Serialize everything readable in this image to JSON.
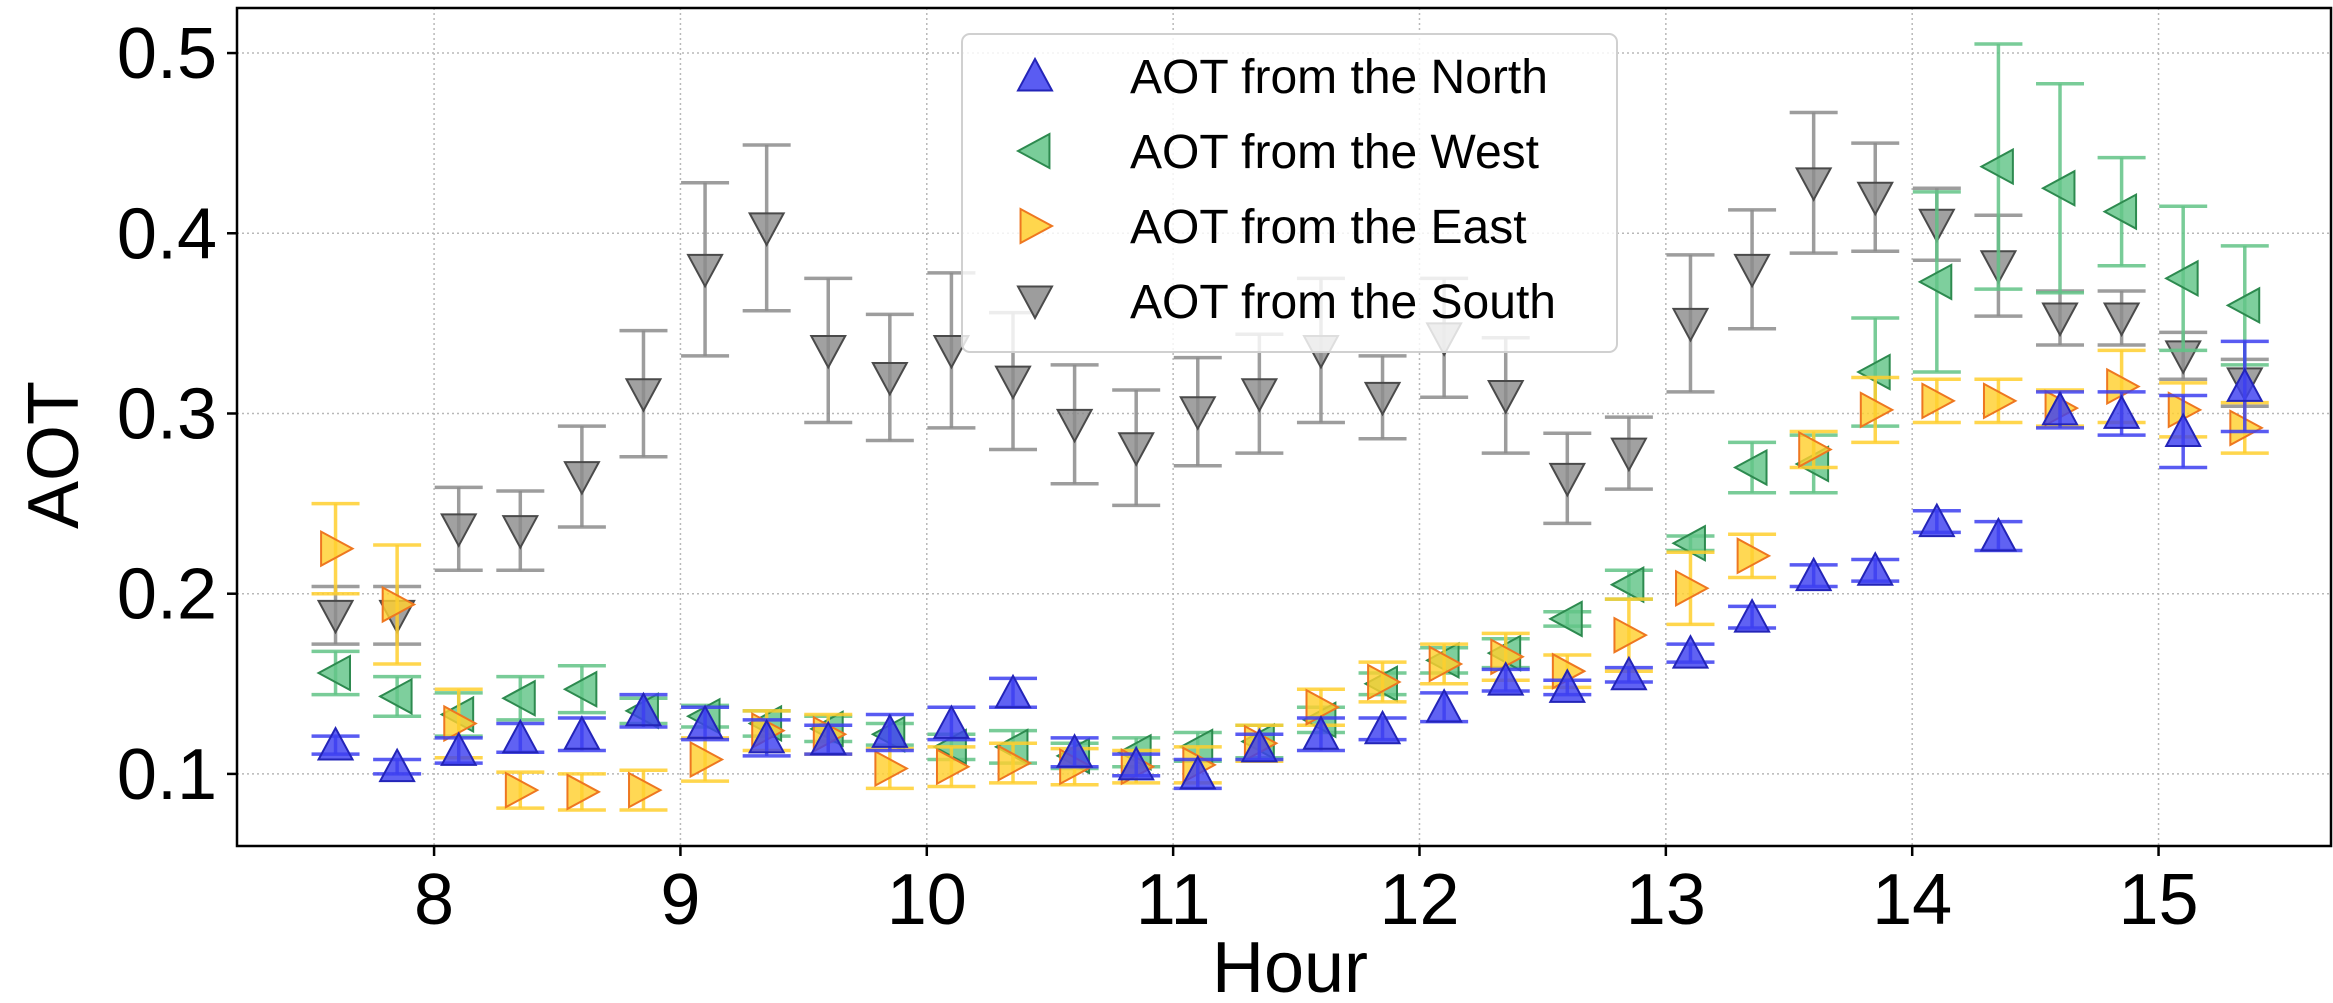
{
  "chart_data": {
    "type": "scatter",
    "title": "",
    "xlabel": "Hour",
    "ylabel": "AOT",
    "xlim": [
      7.2,
      15.7
    ],
    "ylim": [
      0.06,
      0.525
    ],
    "grid": true,
    "legend_position": "top-center",
    "x_ticks": [
      8,
      9,
      10,
      11,
      12,
      13,
      14,
      15
    ],
    "x_tick_labels": [
      "8",
      "9",
      "10",
      "11",
      "12",
      "13",
      "14",
      "15"
    ],
    "y_ticks": [
      0.1,
      0.2,
      0.3,
      0.4,
      0.5
    ],
    "y_tick_labels": [
      "0.1",
      "0.2",
      "0.3",
      "0.4",
      "0.5"
    ],
    "series": [
      {
        "name": "AOT from the North",
        "marker": "triangle-up",
        "fill": "#3d3ff0",
        "stroke": "#2324b8",
        "points": [
          {
            "x": 7.6,
            "y": 0.116,
            "err": 0.005
          },
          {
            "x": 7.85,
            "y": 0.104,
            "err": 0.004
          },
          {
            "x": 8.1,
            "y": 0.113,
            "err": 0.007
          },
          {
            "x": 8.35,
            "y": 0.12,
            "err": 0.008
          },
          {
            "x": 8.6,
            "y": 0.122,
            "err": 0.009
          },
          {
            "x": 8.85,
            "y": 0.135,
            "err": 0.009
          },
          {
            "x": 9.1,
            "y": 0.128,
            "err": 0.009
          },
          {
            "x": 9.35,
            "y": 0.12,
            "err": 0.01
          },
          {
            "x": 9.6,
            "y": 0.119,
            "err": 0.008
          },
          {
            "x": 9.85,
            "y": 0.123,
            "err": 0.01
          },
          {
            "x": 10.1,
            "y": 0.128,
            "err": 0.009
          },
          {
            "x": 10.35,
            "y": 0.145,
            "err": 0.008
          },
          {
            "x": 10.6,
            "y": 0.112,
            "err": 0.008
          },
          {
            "x": 10.85,
            "y": 0.105,
            "err": 0.006
          },
          {
            "x": 11.1,
            "y": 0.1,
            "err": 0.008
          },
          {
            "x": 11.35,
            "y": 0.115,
            "err": 0.007
          },
          {
            "x": 11.6,
            "y": 0.122,
            "err": 0.009
          },
          {
            "x": 11.85,
            "y": 0.125,
            "err": 0.006
          },
          {
            "x": 12.1,
            "y": 0.137,
            "err": 0.008
          },
          {
            "x": 12.35,
            "y": 0.152,
            "err": 0.006
          },
          {
            "x": 12.6,
            "y": 0.148,
            "err": 0.004
          },
          {
            "x": 12.85,
            "y": 0.155,
            "err": 0.004
          },
          {
            "x": 13.1,
            "y": 0.167,
            "err": 0.005
          },
          {
            "x": 13.35,
            "y": 0.187,
            "err": 0.006
          },
          {
            "x": 13.6,
            "y": 0.21,
            "err": 0.006
          },
          {
            "x": 13.85,
            "y": 0.213,
            "err": 0.006
          },
          {
            "x": 14.1,
            "y": 0.24,
            "err": 0.006
          },
          {
            "x": 14.35,
            "y": 0.232,
            "err": 0.008
          },
          {
            "x": 14.6,
            "y": 0.302,
            "err": 0.01
          },
          {
            "x": 14.85,
            "y": 0.3,
            "err": 0.012
          },
          {
            "x": 15.1,
            "y": 0.29,
            "err": 0.02
          },
          {
            "x": 15.35,
            "y": 0.315,
            "err": 0.025
          }
        ]
      },
      {
        "name": "AOT from the West",
        "marker": "triangle-left",
        "fill": "#62c487",
        "stroke": "#2d8a4f",
        "points": [
          {
            "x": 7.6,
            "y": 0.156,
            "err": 0.012
          },
          {
            "x": 7.85,
            "y": 0.143,
            "err": 0.011
          },
          {
            "x": 8.1,
            "y": 0.133,
            "err": 0.012
          },
          {
            "x": 8.35,
            "y": 0.142,
            "err": 0.012
          },
          {
            "x": 8.6,
            "y": 0.147,
            "err": 0.013
          },
          {
            "x": 8.85,
            "y": 0.135,
            "err": 0.007
          },
          {
            "x": 9.1,
            "y": 0.132,
            "err": 0.006
          },
          {
            "x": 9.35,
            "y": 0.128,
            "err": 0.007
          },
          {
            "x": 9.6,
            "y": 0.125,
            "err": 0.007
          },
          {
            "x": 9.85,
            "y": 0.122,
            "err": 0.006
          },
          {
            "x": 10.1,
            "y": 0.115,
            "err": 0.007
          },
          {
            "x": 10.35,
            "y": 0.115,
            "err": 0.009
          },
          {
            "x": 10.6,
            "y": 0.11,
            "err": 0.007
          },
          {
            "x": 10.85,
            "y": 0.112,
            "err": 0.008
          },
          {
            "x": 11.1,
            "y": 0.115,
            "err": 0.008
          },
          {
            "x": 11.35,
            "y": 0.118,
            "err": 0.009
          },
          {
            "x": 11.6,
            "y": 0.13,
            "err": 0.007
          },
          {
            "x": 11.85,
            "y": 0.15,
            "err": 0.006
          },
          {
            "x": 12.1,
            "y": 0.163,
            "err": 0.007
          },
          {
            "x": 12.35,
            "y": 0.167,
            "err": 0.008
          },
          {
            "x": 12.6,
            "y": 0.186,
            "err": 0.004
          },
          {
            "x": 12.85,
            "y": 0.205,
            "err": 0.008
          },
          {
            "x": 13.1,
            "y": 0.228,
            "err": 0.004
          },
          {
            "x": 13.35,
            "y": 0.27,
            "err": 0.014
          },
          {
            "x": 13.6,
            "y": 0.272,
            "err": 0.016
          },
          {
            "x": 13.85,
            "y": 0.323,
            "err": 0.03
          },
          {
            "x": 14.1,
            "y": 0.373,
            "err": 0.05
          },
          {
            "x": 14.35,
            "y": 0.437,
            "err": 0.068
          },
          {
            "x": 14.6,
            "y": 0.425,
            "err": 0.058
          },
          {
            "x": 14.85,
            "y": 0.412,
            "err": 0.03
          },
          {
            "x": 15.1,
            "y": 0.375,
            "err": 0.04
          },
          {
            "x": 15.35,
            "y": 0.36,
            "err": 0.033
          }
        ]
      },
      {
        "name": "AOT from the East",
        "marker": "triangle-right",
        "fill": "#ffcf2e",
        "stroke": "#ee7720",
        "points": [
          {
            "x": 7.6,
            "y": 0.225,
            "err": 0.025
          },
          {
            "x": 7.85,
            "y": 0.194,
            "err": 0.033
          },
          {
            "x": 8.1,
            "y": 0.128,
            "err": 0.019
          },
          {
            "x": 8.35,
            "y": 0.091,
            "err": 0.01
          },
          {
            "x": 8.6,
            "y": 0.09,
            "err": 0.01
          },
          {
            "x": 8.85,
            "y": 0.091,
            "err": 0.011
          },
          {
            "x": 9.1,
            "y": 0.108,
            "err": 0.012
          },
          {
            "x": 9.35,
            "y": 0.124,
            "err": 0.011
          },
          {
            "x": 9.6,
            "y": 0.122,
            "err": 0.011
          },
          {
            "x": 9.85,
            "y": 0.103,
            "err": 0.011
          },
          {
            "x": 10.1,
            "y": 0.104,
            "err": 0.011
          },
          {
            "x": 10.35,
            "y": 0.106,
            "err": 0.011
          },
          {
            "x": 10.6,
            "y": 0.104,
            "err": 0.01
          },
          {
            "x": 10.85,
            "y": 0.104,
            "err": 0.009
          },
          {
            "x": 11.1,
            "y": 0.105,
            "err": 0.01
          },
          {
            "x": 11.35,
            "y": 0.117,
            "err": 0.01
          },
          {
            "x": 11.6,
            "y": 0.137,
            "err": 0.01
          },
          {
            "x": 11.85,
            "y": 0.151,
            "err": 0.011
          },
          {
            "x": 12.1,
            "y": 0.161,
            "err": 0.011
          },
          {
            "x": 12.35,
            "y": 0.165,
            "err": 0.013
          },
          {
            "x": 12.6,
            "y": 0.157,
            "err": 0.009
          },
          {
            "x": 12.85,
            "y": 0.177,
            "err": 0.02
          },
          {
            "x": 13.1,
            "y": 0.203,
            "err": 0.02
          },
          {
            "x": 13.35,
            "y": 0.221,
            "err": 0.012
          },
          {
            "x": 13.6,
            "y": 0.28,
            "err": 0.01
          },
          {
            "x": 13.85,
            "y": 0.302,
            "err": 0.018
          },
          {
            "x": 14.1,
            "y": 0.307,
            "err": 0.012
          },
          {
            "x": 14.35,
            "y": 0.307,
            "err": 0.012
          },
          {
            "x": 14.6,
            "y": 0.303,
            "err": 0.01
          },
          {
            "x": 14.85,
            "y": 0.315,
            "err": 0.02
          },
          {
            "x": 15.1,
            "y": 0.302,
            "err": 0.015
          },
          {
            "x": 15.35,
            "y": 0.292,
            "err": 0.014
          }
        ]
      },
      {
        "name": "AOT from the South",
        "marker": "triangle-down",
        "fill": "#8c8c8c",
        "stroke": "#4a4a4a",
        "points": [
          {
            "x": 7.6,
            "y": 0.188,
            "err": 0.016
          },
          {
            "x": 7.85,
            "y": 0.188,
            "err": 0.016
          },
          {
            "x": 8.1,
            "y": 0.236,
            "err": 0.023
          },
          {
            "x": 8.35,
            "y": 0.235,
            "err": 0.022
          },
          {
            "x": 8.6,
            "y": 0.265,
            "err": 0.028
          },
          {
            "x": 8.85,
            "y": 0.311,
            "err": 0.035
          },
          {
            "x": 9.1,
            "y": 0.38,
            "err": 0.048
          },
          {
            "x": 9.35,
            "y": 0.403,
            "err": 0.046
          },
          {
            "x": 9.6,
            "y": 0.335,
            "err": 0.04
          },
          {
            "x": 9.85,
            "y": 0.32,
            "err": 0.035
          },
          {
            "x": 10.1,
            "y": 0.335,
            "err": 0.043
          },
          {
            "x": 10.35,
            "y": 0.318,
            "err": 0.038
          },
          {
            "x": 10.6,
            "y": 0.294,
            "err": 0.033
          },
          {
            "x": 10.85,
            "y": 0.281,
            "err": 0.032
          },
          {
            "x": 11.1,
            "y": 0.301,
            "err": 0.03
          },
          {
            "x": 11.35,
            "y": 0.311,
            "err": 0.033
          },
          {
            "x": 11.6,
            "y": 0.335,
            "err": 0.04
          },
          {
            "x": 11.85,
            "y": 0.309,
            "err": 0.023
          },
          {
            "x": 12.1,
            "y": 0.342,
            "err": 0.033
          },
          {
            "x": 12.35,
            "y": 0.31,
            "err": 0.032
          },
          {
            "x": 12.6,
            "y": 0.264,
            "err": 0.025
          },
          {
            "x": 12.85,
            "y": 0.278,
            "err": 0.02
          },
          {
            "x": 13.1,
            "y": 0.35,
            "err": 0.038
          },
          {
            "x": 13.35,
            "y": 0.38,
            "err": 0.033
          },
          {
            "x": 13.6,
            "y": 0.428,
            "err": 0.039
          },
          {
            "x": 13.85,
            "y": 0.42,
            "err": 0.03
          },
          {
            "x": 14.1,
            "y": 0.405,
            "err": 0.02
          },
          {
            "x": 14.35,
            "y": 0.382,
            "err": 0.028
          },
          {
            "x": 14.6,
            "y": 0.353,
            "err": 0.015
          },
          {
            "x": 14.85,
            "y": 0.353,
            "err": 0.015
          },
          {
            "x": 15.1,
            "y": 0.332,
            "err": 0.013
          },
          {
            "x": 15.35,
            "y": 0.317,
            "err": 0.013
          }
        ]
      }
    ]
  }
}
